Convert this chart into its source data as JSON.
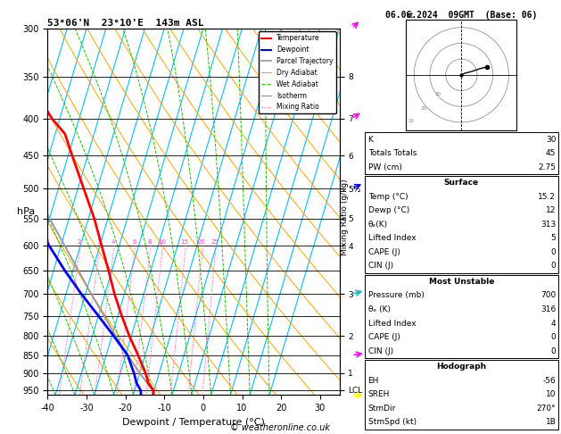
{
  "title_left": "53°06'N  23°10'E  143m ASL",
  "title_right": "06.06.2024  09GMT  (Base: 06)",
  "xlabel": "Dewpoint / Temperature (°C)",
  "ylabel_left": "hPa",
  "pressure_levels": [
    300,
    350,
    400,
    450,
    500,
    550,
    600,
    650,
    700,
    750,
    800,
    850,
    900,
    950
  ],
  "temp_xlim": [
    -40,
    35
  ],
  "temp_ticks": [
    -40,
    -30,
    -20,
    -10,
    0,
    10,
    20,
    30
  ],
  "isotherm_color": "#00BFFF",
  "dry_adiabat_color": "#FFA500",
  "wet_adiabat_color": "#22BB00",
  "mixing_ratio_color": "#FF44BB",
  "temp_profile_color": "#FF0000",
  "dewp_profile_color": "#0000EE",
  "parcel_color": "#999999",
  "temp_profile_pressure": [
    965,
    950,
    930,
    900,
    850,
    800,
    750,
    700,
    650,
    600,
    550,
    500,
    450,
    420,
    400,
    350,
    310,
    300
  ],
  "temp_profile_temp": [
    15.2,
    14.8,
    13.0,
    11.5,
    8.2,
    4.5,
    1.0,
    -2.5,
    -5.8,
    -9.5,
    -13.5,
    -18.5,
    -24.0,
    -27.5,
    -32.0,
    -42.0,
    -52.0,
    -55.0
  ],
  "dewp_profile_pressure": [
    965,
    950,
    930,
    900,
    850,
    800,
    750,
    700,
    650,
    600,
    550,
    500,
    450,
    420,
    400,
    350,
    310,
    300
  ],
  "dewp_profile_temp": [
    12.0,
    11.5,
    10.0,
    8.5,
    5.5,
    0.5,
    -5.0,
    -11.0,
    -17.0,
    -23.0,
    -29.0,
    -35.0,
    -41.0,
    -44.0,
    -46.0,
    -52.0,
    -59.0,
    -61.0
  ],
  "parcel_profile_pressure": [
    965,
    950,
    900,
    850,
    800,
    750,
    700,
    650,
    600,
    550,
    500,
    450,
    420,
    400,
    350,
    310,
    300
  ],
  "parcel_profile_temp": [
    15.2,
    14.5,
    10.0,
    5.5,
    1.0,
    -3.5,
    -8.5,
    -13.5,
    -19.0,
    -25.0,
    -31.0,
    -38.0,
    -41.5,
    -46.0,
    -55.0,
    -63.0,
    -66.0
  ],
  "mixing_ratios": [
    1,
    2,
    3,
    4,
    6,
    8,
    10,
    15,
    20,
    25
  ],
  "skew_deg": 45,
  "stats_k": 30,
  "stats_tt": 45,
  "stats_pw": "2.75",
  "surf_temp": "15.2",
  "surf_dewp": "12",
  "surf_the": "313",
  "surf_li": "5",
  "surf_cape": "0",
  "surf_cin": "0",
  "mu_press": "700",
  "mu_the": "316",
  "mu_li": "4",
  "mu_cape": "0",
  "mu_cin": "0",
  "hodo_eh": "-56",
  "hodo_sreh": "10",
  "hodo_stmdir": "270°",
  "hodo_stmspd": "1B",
  "footer": "© weatheronline.co.uk",
  "km_pressures": [
    350,
    400,
    450,
    500,
    550,
    600,
    700,
    800,
    900,
    950
  ],
  "km_labels": [
    "8",
    "7",
    "6",
    "5½",
    "5",
    "4",
    "3",
    "2",
    "1",
    "LCL"
  ],
  "wind_pressures": [
    300,
    400,
    500,
    700,
    850,
    965
  ],
  "wind_speeds": [
    45,
    35,
    25,
    20,
    15,
    18
  ],
  "wind_dirs": [
    220,
    230,
    240,
    250,
    260,
    270
  ],
  "wind_colors": [
    "#FF00FF",
    "#FF00FF",
    "#0000FF",
    "#00BBBB",
    "#FF00FF",
    "#FFFF00"
  ]
}
